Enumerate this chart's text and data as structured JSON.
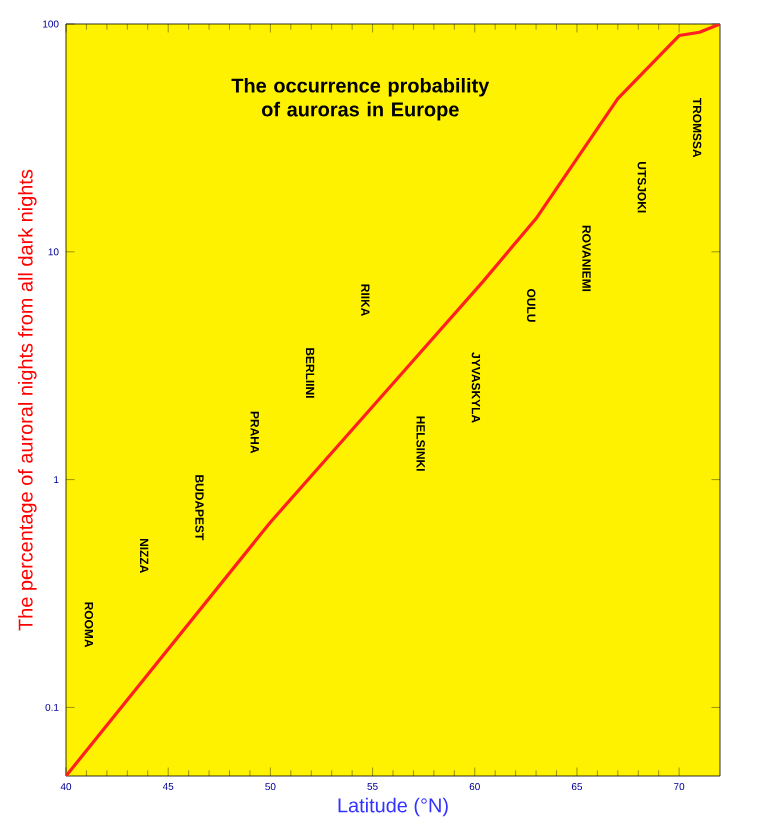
{
  "chart_data": {
    "type": "line",
    "title": "The occurrence probability of auroras in Europe",
    "xlabel": "Latitude (°N)",
    "ylabel": "The percentage of auroral nights from all dark nights",
    "log": "y",
    "xlim": [
      40,
      72
    ],
    "ylim": [
      0.05,
      100
    ],
    "xticks": [
      40,
      45,
      50,
      55,
      60,
      65,
      70
    ],
    "yticks": [
      0.1,
      1,
      10,
      100
    ],
    "x": [
      40,
      50,
      56.4,
      60.4,
      63,
      67,
      70,
      71,
      72
    ],
    "series": [
      {
        "color": "#ff2020",
        "values": [
          0.05,
          0.65,
          2.9,
          7.4,
          14,
          47,
          89,
          92,
          100
        ]
      }
    ],
    "annotations": [
      "ROOMA",
      "NIZZA",
      "BUDAPEST",
      "PRAHA",
      "BERLIINI",
      "RIIKA",
      "HELSINKI",
      "JYVASKYLA",
      "OULU",
      "ROVANIEMI",
      "UTSJOKI",
      "TROMSSA"
    ]
  }
}
